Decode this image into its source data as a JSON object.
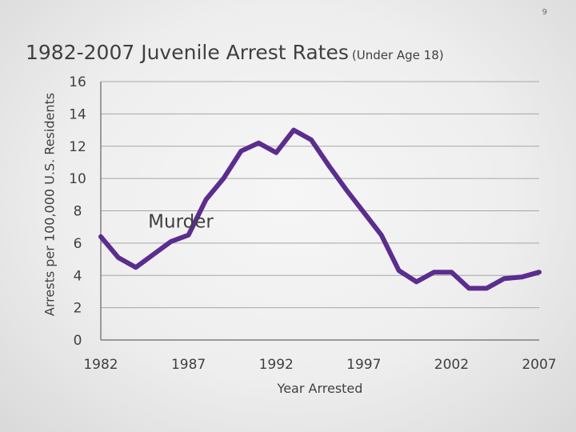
{
  "page_number": "9",
  "chart_data": {
    "type": "line",
    "title": "1982-2007 Juvenile Arrest Rates",
    "subtitle": "(Under Age 18)",
    "xlabel": "Year Arrested",
    "ylabel": "Arrests per 100,000 U.S. Residents",
    "xlim": [
      1982,
      2007
    ],
    "ylim": [
      0,
      16
    ],
    "x_ticks": [
      1982,
      1987,
      1992,
      1997,
      2002,
      2007
    ],
    "y_ticks": [
      0,
      2,
      4,
      6,
      8,
      10,
      12,
      14,
      16
    ],
    "grid": true,
    "legend": "none",
    "annotation": {
      "text": "Murder",
      "x": 1984.7,
      "y": 7
    },
    "series": [
      {
        "color": "#5b2d8e",
        "x": [
          1982,
          1983,
          1984,
          1985,
          1986,
          1987,
          1988,
          1989,
          1990,
          1991,
          1992,
          1993,
          1994,
          1995,
          1996,
          1997,
          1998,
          1999,
          2000,
          2001,
          2002,
          2003,
          2004,
          2005,
          2006,
          2007
        ],
        "values": [
          6.4,
          5.1,
          4.5,
          5.3,
          6.1,
          6.5,
          8.7,
          10.0,
          11.7,
          12.2,
          11.6,
          13.0,
          12.4,
          10.8,
          9.3,
          7.9,
          6.5,
          4.3,
          3.6,
          4.2,
          4.2,
          3.2,
          3.2,
          3.8,
          3.9,
          4.2
        ]
      }
    ]
  }
}
